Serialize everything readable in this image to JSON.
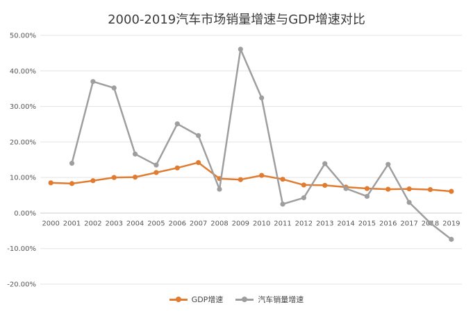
{
  "chart_data": {
    "type": "line",
    "title": "2000-2019汽车市场销量增速与GDP增速对比",
    "categories": [
      "2000",
      "2001",
      "2002",
      "2003",
      "2004",
      "2005",
      "2006",
      "2007",
      "2008",
      "2009",
      "2010",
      "2011",
      "2012",
      "2013",
      "2014",
      "2015",
      "2016",
      "2017",
      "2018",
      "2019"
    ],
    "ylim": [
      -20,
      50
    ],
    "ytick_labels": [
      "50.00%",
      "40.00%",
      "30.00%",
      "20.00%",
      "10.00%",
      "0.00%",
      "-10.00%",
      "-20.00%"
    ],
    "yticks": [
      50,
      40,
      30,
      20,
      10,
      0,
      -10,
      -20
    ],
    "grid": true,
    "legend_position": "bottom",
    "series": [
      {
        "name": "GDP增速",
        "color": "#E07B2F",
        "values": [
          8.5,
          8.3,
          9.1,
          10.0,
          10.1,
          11.4,
          12.7,
          14.2,
          9.7,
          9.4,
          10.6,
          9.5,
          7.9,
          7.8,
          7.3,
          6.9,
          6.7,
          6.8,
          6.6,
          6.1
        ]
      },
      {
        "name": "汽车销量增速",
        "color": "#9E9E9E",
        "values": [
          null,
          14.0,
          37.0,
          35.2,
          16.6,
          13.5,
          25.1,
          21.8,
          6.7,
          46.1,
          32.4,
          2.5,
          4.3,
          13.9,
          6.9,
          4.7,
          13.7,
          3.0,
          -2.8,
          -7.4
        ]
      }
    ]
  }
}
